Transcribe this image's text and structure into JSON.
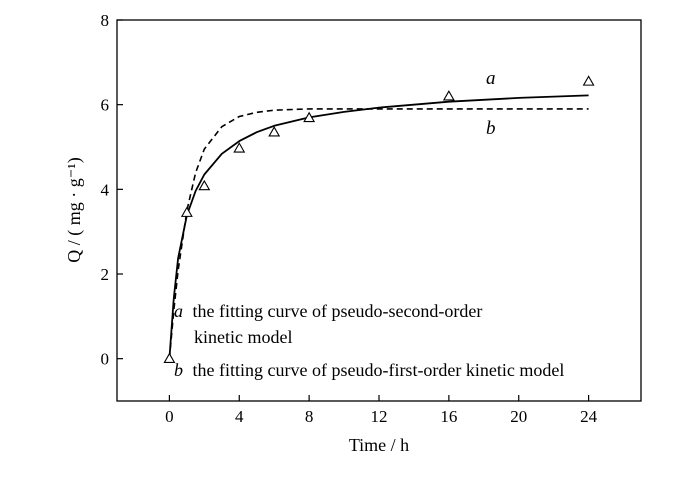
{
  "chart_data": {
    "type": "line",
    "xlabel": "Time / h",
    "ylabel": "Q / ( mg · g⁻¹)",
    "xlim": [
      -3,
      27
    ],
    "ylim": [
      -1,
      8
    ],
    "xticks": [
      0,
      4,
      8,
      12,
      16,
      20,
      24
    ],
    "yticks": [
      0,
      2,
      4,
      6,
      8
    ],
    "grid": false,
    "experimental_points": {
      "marker": "triangle",
      "x": [
        0,
        1,
        2,
        4,
        6,
        8,
        16,
        24
      ],
      "y": [
        0,
        3.45,
        4.08,
        4.97,
        5.35,
        5.69,
        6.2,
        6.55
      ]
    },
    "series": [
      {
        "label": "a",
        "style": "solid",
        "x": [
          0,
          0.25,
          0.5,
          1,
          1.5,
          2,
          3,
          4,
          5,
          6,
          8,
          10,
          12,
          16,
          20,
          24
        ],
        "y": [
          0,
          1.43,
          2.37,
          3.39,
          3.96,
          4.35,
          4.84,
          5.14,
          5.35,
          5.5,
          5.7,
          5.83,
          5.93,
          6.07,
          6.16,
          6.22
        ]
      },
      {
        "label": "b",
        "style": "dashed",
        "x": [
          0,
          0.25,
          0.5,
          1,
          1.5,
          2,
          3,
          4,
          5,
          6,
          8,
          10,
          12,
          16,
          20,
          24
        ],
        "y": [
          0,
          1.14,
          2.08,
          3.5,
          4.39,
          4.95,
          5.48,
          5.72,
          5.82,
          5.87,
          5.9,
          5.9,
          5.9,
          5.9,
          5.9,
          5.9
        ]
      }
    ],
    "legend": {
      "placement": "bottom-right inside",
      "entries": [
        {
          "letter": "a",
          "text": "the fitting curve of pseudo-second-order",
          "text_line2": "kinetic model"
        },
        {
          "letter": "b",
          "text": "the fitting curve of pseudo-first-order kinetic model"
        }
      ]
    }
  }
}
